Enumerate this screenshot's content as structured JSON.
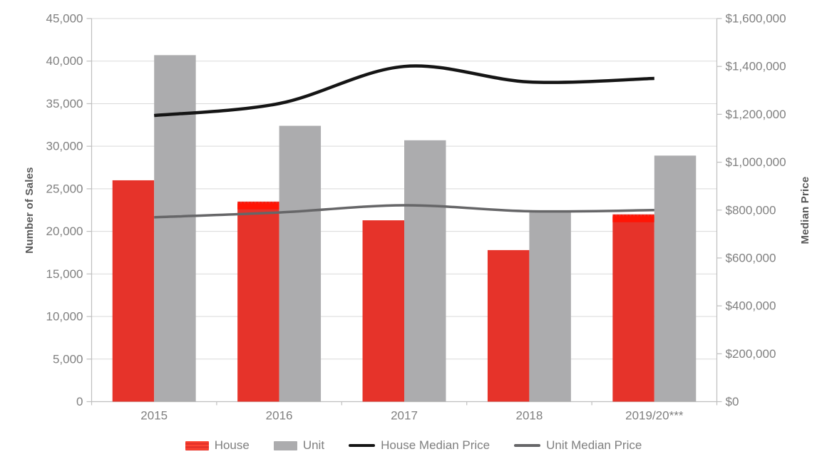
{
  "chart_data": {
    "type": "combo-bar-line",
    "title": "",
    "categories": [
      "2015",
      "2016",
      "2017",
      "2018",
      "2019/20***"
    ],
    "bar_series": [
      {
        "name": "House",
        "color": "#E6332A",
        "hatch_color": "#FF1505",
        "values": [
          26000,
          23500,
          21300,
          17800,
          22000
        ],
        "hatched": [
          false,
          true,
          false,
          false,
          true
        ]
      },
      {
        "name": "Unit",
        "color": "#ACACAE",
        "values": [
          40700,
          32400,
          30700,
          22300,
          28900
        ]
      }
    ],
    "line_series": [
      {
        "name": "House Median Price",
        "color": "#151515",
        "axis": "right",
        "values": [
          1195000,
          1245000,
          1400000,
          1335000,
          1350000
        ]
      },
      {
        "name": "Unit Median Price",
        "color": "#666668",
        "axis": "right",
        "values": [
          770000,
          790000,
          820000,
          795000,
          800000
        ]
      }
    ],
    "left_axis": {
      "label": "Number of Sales",
      "min": 0,
      "max": 45000,
      "step": 5000,
      "tick_labels": [
        "0",
        "5,000",
        "10,000",
        "15,000",
        "20,000",
        "25,000",
        "30,000",
        "35,000",
        "40,000",
        "45,000"
      ]
    },
    "right_axis": {
      "label": "Median Price",
      "min": 0,
      "max": 1600000,
      "step": 200000,
      "tick_labels": [
        "$0",
        "$200,000",
        "$400,000",
        "$600,000",
        "$800,000",
        "$1,000,000",
        "$1,200,000",
        "$1,400,000",
        "$1,600,000"
      ]
    },
    "grid": true,
    "legend_position": "bottom",
    "colors": {
      "gridline": "#D9D9D9",
      "axis_line": "#BFBFBF",
      "tick_text": "#808080",
      "axis_title_text": "#595959",
      "legend_text": "#7F7F7F",
      "background": "#FFFFFF"
    }
  }
}
